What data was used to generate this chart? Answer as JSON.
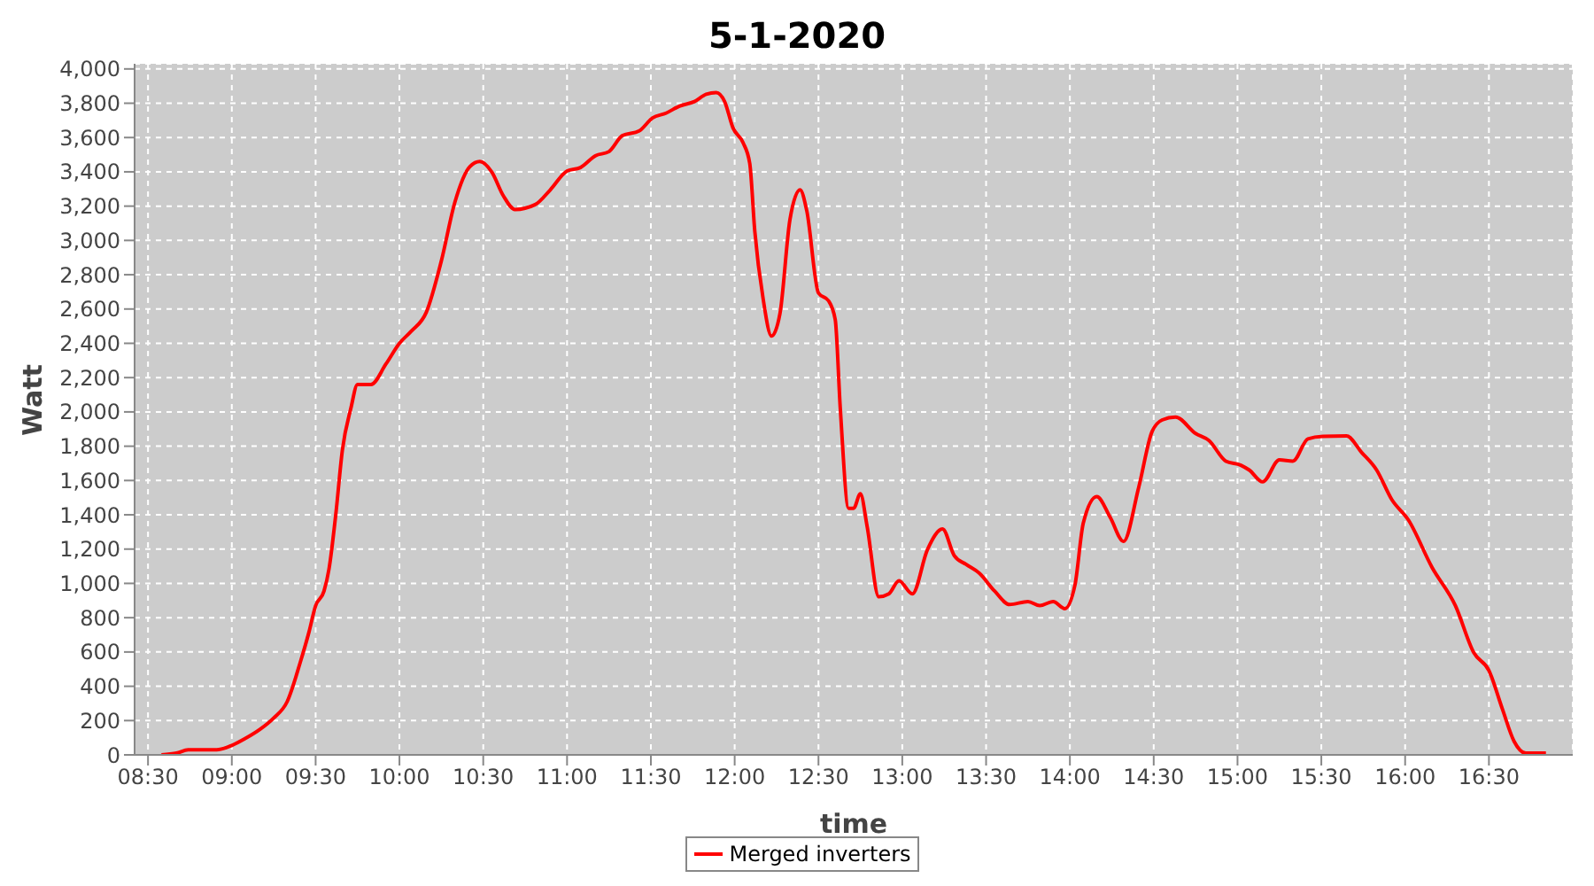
{
  "chart_data": {
    "type": "line",
    "title": "5-1-2020",
    "xlabel": "time",
    "ylabel": "Watt",
    "x": [
      8.58,
      8.67,
      8.74,
      8.83,
      8.91,
      9.0,
      9.08,
      9.17,
      9.25,
      9.33,
      9.41,
      9.46,
      9.5,
      9.55,
      9.58,
      9.62,
      9.66,
      9.71,
      9.75,
      9.83,
      9.92,
      10.0,
      10.07,
      10.16,
      10.25,
      10.33,
      10.42,
      10.48,
      10.55,
      10.62,
      10.69,
      10.81,
      10.9,
      11.0,
      11.08,
      11.17,
      11.25,
      11.33,
      11.43,
      11.51,
      11.59,
      11.67,
      11.76,
      11.83,
      11.89,
      11.94,
      11.99,
      12.05,
      12.09,
      12.12,
      12.17,
      12.22,
      12.27,
      12.33,
      12.39,
      12.43,
      12.5,
      12.56,
      12.6,
      12.63,
      12.68,
      12.71,
      12.75,
      12.79,
      12.86,
      12.92,
      12.98,
      13.06,
      13.15,
      13.24,
      13.31,
      13.38,
      13.46,
      13.55,
      13.64,
      13.75,
      13.82,
      13.9,
      13.97,
      14.03,
      14.08,
      14.16,
      14.24,
      14.32,
      14.41,
      14.49,
      14.55,
      14.63,
      14.75,
      14.83,
      14.93,
      15.02,
      15.07,
      15.15,
      15.25,
      15.33,
      15.42,
      15.51,
      15.65,
      15.74,
      15.83,
      15.92,
      16.02,
      16.16,
      16.3,
      16.41,
      16.5,
      16.58,
      16.65,
      16.72,
      16.84
    ],
    "series": [
      {
        "name": "Merged inverters",
        "color": "#ff0000",
        "values": [
          0,
          10,
          30,
          30,
          30,
          55,
          95,
          150,
          215,
          310,
          545,
          715,
          870,
          955,
          1085,
          1400,
          1780,
          2020,
          2160,
          2160,
          2280,
          2400,
          2470,
          2580,
          2880,
          3220,
          3430,
          3460,
          3400,
          3260,
          3180,
          3209,
          3295,
          3405,
          3425,
          3494,
          3518,
          3611,
          3638,
          3714,
          3742,
          3783,
          3810,
          3852,
          3862,
          3810,
          3656,
          3570,
          3449,
          3054,
          2658,
          2442,
          2572,
          3123,
          3295,
          3174,
          2693,
          2648,
          2538,
          2022,
          1438,
          1438,
          1523,
          1334,
          922,
          939,
          1015,
          939,
          1197,
          1317,
          1162,
          1111,
          1059,
          956,
          877,
          894,
          870,
          894,
          853,
          990,
          1352,
          1506,
          1386,
          1245,
          1558,
          1885,
          1953,
          1970,
          1874,
          1833,
          1713,
          1689,
          1661,
          1592,
          1720,
          1713,
          1843,
          1857,
          1860,
          1764,
          1661,
          1489,
          1369,
          1094,
          870,
          595,
          492,
          268,
          79,
          10,
          10
        ]
      }
    ],
    "xlim": [
      8.42,
      17.0
    ],
    "xticks": [
      {
        "value": 8.5,
        "label": "08:30"
      },
      {
        "value": 9,
        "label": "09:00"
      },
      {
        "value": 9.5,
        "label": "09:30"
      },
      {
        "value": 10,
        "label": "10:00"
      },
      {
        "value": 10.5,
        "label": "10:30"
      },
      {
        "value": 11,
        "label": "11:00"
      },
      {
        "value": 11.5,
        "label": "11:30"
      },
      {
        "value": 12,
        "label": "12:00"
      },
      {
        "value": 12.5,
        "label": "12:30"
      },
      {
        "value": 13,
        "label": "13:00"
      },
      {
        "value": 13.5,
        "label": "13:30"
      },
      {
        "value": 14,
        "label": "14:00"
      },
      {
        "value": 14.5,
        "label": "14:30"
      },
      {
        "value": 15,
        "label": "15:00"
      },
      {
        "value": 15.5,
        "label": "15:30"
      },
      {
        "value": 16,
        "label": "16:00"
      },
      {
        "value": 16.5,
        "label": "16:30"
      }
    ],
    "ylim": [
      0,
      4030
    ],
    "yticks": [
      0,
      200,
      400,
      600,
      800,
      {
        "value": 1000,
        "label": "1,000"
      },
      {
        "value": 1200,
        "label": "1,200"
      },
      {
        "value": 1400,
        "label": "1,400"
      },
      {
        "value": 1600,
        "label": "1,600"
      },
      {
        "value": 1800,
        "label": "1,800"
      },
      {
        "value": 2000,
        "label": "2,000"
      },
      {
        "value": 2200,
        "label": "2,200"
      },
      {
        "value": 2400,
        "label": "2,400"
      },
      {
        "value": 2600,
        "label": "2,600"
      },
      {
        "value": 2800,
        "label": "2,800"
      },
      {
        "value": 3000,
        "label": "3,000"
      },
      {
        "value": 3200,
        "label": "3,200"
      },
      {
        "value": 3400,
        "label": "3,400"
      },
      {
        "value": 3600,
        "label": "3,600"
      },
      {
        "value": 3800,
        "label": "3,800"
      },
      {
        "value": 4000,
        "label": "4,000"
      }
    ],
    "grid": true,
    "legend": "bottom",
    "marker": "none",
    "line_style": "solid"
  }
}
